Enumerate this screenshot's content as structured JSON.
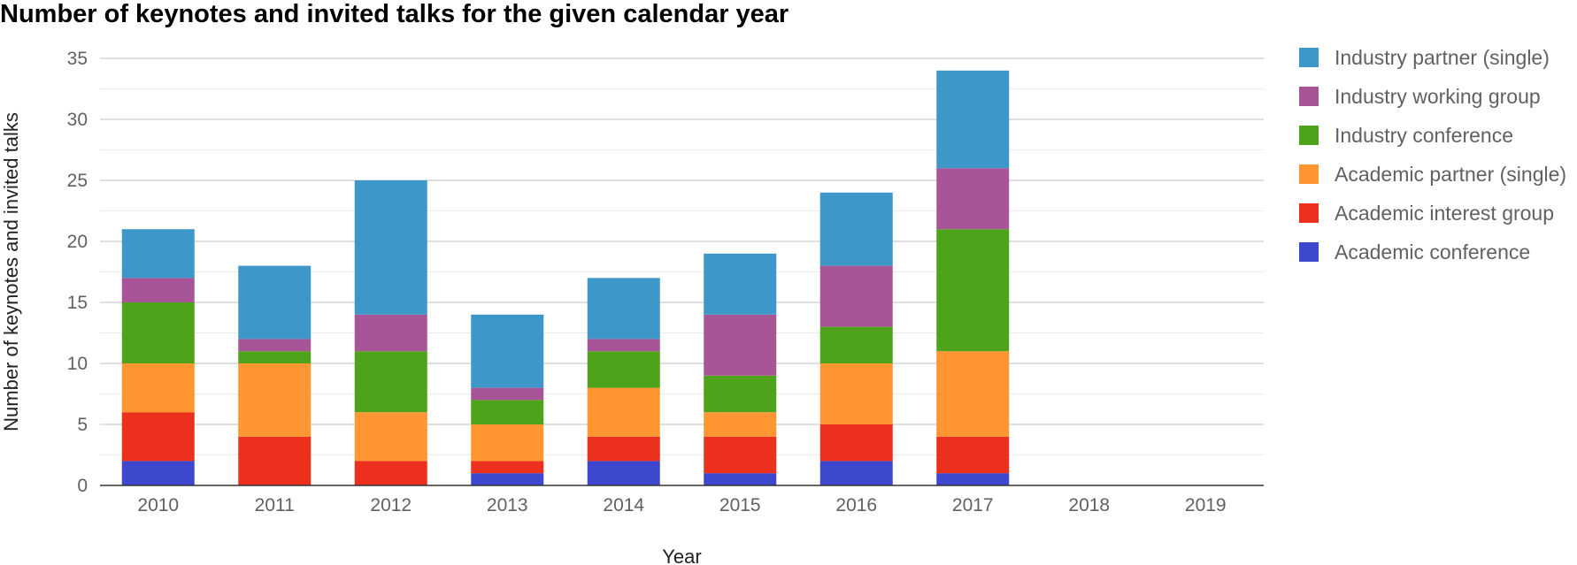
{
  "chart_data": {
    "type": "bar",
    "stacked": true,
    "title": "Number of keynotes and invited talks for the given calendar year",
    "xlabel": "Year",
    "ylabel": "Number of keynotes and invited talks",
    "categories": [
      "2010",
      "2011",
      "2012",
      "2013",
      "2014",
      "2015",
      "2016",
      "2017",
      "2018",
      "2019"
    ],
    "ylim": [
      0,
      35
    ],
    "yticks": [
      0,
      5,
      10,
      15,
      20,
      25,
      30,
      35
    ],
    "grid": true,
    "legend_position": "right",
    "series": [
      {
        "name": "Academic conference",
        "color": "#3d48cf",
        "values": [
          2,
          0,
          0,
          1,
          2,
          1,
          2,
          1,
          0,
          0
        ]
      },
      {
        "name": "Academic interest group",
        "color": "#eb301d",
        "values": [
          4,
          4,
          2,
          1,
          2,
          3,
          3,
          3,
          0,
          0
        ]
      },
      {
        "name": "Academic partner (single)",
        "color": "#ff9632",
        "values": [
          4,
          6,
          4,
          3,
          4,
          2,
          5,
          7,
          0,
          0
        ]
      },
      {
        "name": "Industry conference",
        "color": "#4fa31a",
        "values": [
          5,
          1,
          5,
          2,
          3,
          3,
          3,
          10,
          0,
          0
        ]
      },
      {
        "name": "Industry working group",
        "color": "#a85598",
        "values": [
          2,
          1,
          3,
          1,
          1,
          5,
          5,
          5,
          0,
          0
        ]
      },
      {
        "name": "Industry partner (single)",
        "color": "#3e97c9",
        "values": [
          4,
          6,
          11,
          6,
          5,
          5,
          6,
          8,
          0,
          0
        ]
      }
    ]
  }
}
